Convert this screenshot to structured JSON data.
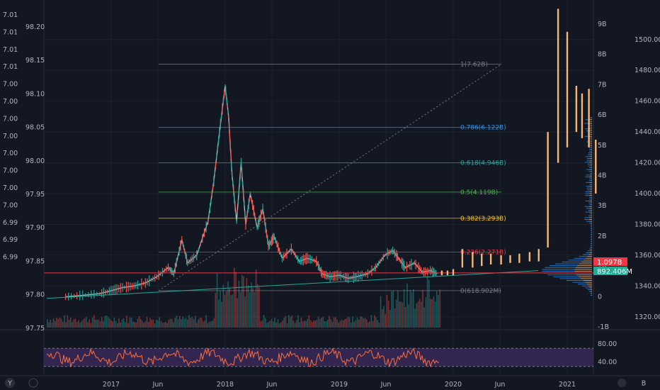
{
  "chart_data": {
    "type": "line",
    "title": "",
    "left_axis_outer_ticks": [
      "7.01",
      "7.01",
      "7.01",
      "7.01",
      "7.00",
      "7.00",
      "7.00",
      "7.00",
      "7.00",
      "7.00",
      "7.00",
      "7.00",
      "6.99",
      "6.99",
      "6.99"
    ],
    "left_axis_inner_ticks": [
      "98.20",
      "98.15",
      "98.10",
      "98.05",
      "98.00",
      "97.95",
      "97.90",
      "97.85",
      "97.80",
      "97.75"
    ],
    "volume_axis_ticks": [
      "9B",
      "8B",
      "7B",
      "6B",
      "5B",
      "4B",
      "3B",
      "2B",
      "1B",
      "0",
      "-1B"
    ],
    "price_axis_ticks": [
      "1500.00",
      "1480.00",
      "1460.00",
      "1440.00",
      "1420.00",
      "1400.00",
      "1380.00",
      "1360.00",
      "1340.00",
      "1320.00"
    ],
    "price_ylim": [
      1313,
      1522
    ],
    "rsi_ticks": [
      "80.00",
      "40.00"
    ],
    "x_tick_labels": [
      "2017",
      "Jun",
      "2018",
      "Jun",
      "2019",
      "Jun",
      "2020",
      "Jun",
      "2021"
    ],
    "fib_levels": [
      {
        "label": "1(7.62B)",
        "value": 1484
      },
      {
        "label": "0.786(6.122B)",
        "value": 1443
      },
      {
        "label": "0.618(4.946B)",
        "value": 1420
      },
      {
        "label": "0.5(4.119B)",
        "value": 1401
      },
      {
        "label": "0.382(3.293B)",
        "value": 1384
      },
      {
        "label": "0.236(2.271B)",
        "value": 1362
      },
      {
        "label": "0(618.902M)",
        "value": 1337
      }
    ],
    "price_series": [
      {
        "t": 2016.6,
        "v": 1333
      },
      {
        "t": 2016.75,
        "v": 1334
      },
      {
        "t": 2016.9,
        "v": 1335
      },
      {
        "t": 2017.0,
        "v": 1337
      },
      {
        "t": 2017.1,
        "v": 1339
      },
      {
        "t": 2017.2,
        "v": 1340
      },
      {
        "t": 2017.3,
        "v": 1342
      },
      {
        "t": 2017.4,
        "v": 1346
      },
      {
        "t": 2017.5,
        "v": 1352
      },
      {
        "t": 2017.55,
        "v": 1348
      },
      {
        "t": 2017.62,
        "v": 1370
      },
      {
        "t": 2017.67,
        "v": 1355
      },
      {
        "t": 2017.75,
        "v": 1360
      },
      {
        "t": 2017.85,
        "v": 1382
      },
      {
        "t": 2017.9,
        "v": 1408
      },
      {
        "t": 2017.95,
        "v": 1440
      },
      {
        "t": 2018.0,
        "v": 1470
      },
      {
        "t": 2018.03,
        "v": 1450
      },
      {
        "t": 2018.06,
        "v": 1412
      },
      {
        "t": 2018.1,
        "v": 1382
      },
      {
        "t": 2018.14,
        "v": 1420
      },
      {
        "t": 2018.18,
        "v": 1380
      },
      {
        "t": 2018.22,
        "v": 1400
      },
      {
        "t": 2018.28,
        "v": 1378
      },
      {
        "t": 2018.33,
        "v": 1390
      },
      {
        "t": 2018.38,
        "v": 1366
      },
      {
        "t": 2018.43,
        "v": 1372
      },
      {
        "t": 2018.5,
        "v": 1358
      },
      {
        "t": 2018.58,
        "v": 1364
      },
      {
        "t": 2018.65,
        "v": 1356
      },
      {
        "t": 2018.72,
        "v": 1358
      },
      {
        "t": 2018.8,
        "v": 1356
      },
      {
        "t": 2018.85,
        "v": 1348
      },
      {
        "t": 2018.92,
        "v": 1346
      },
      {
        "t": 2019.0,
        "v": 1347
      },
      {
        "t": 2019.08,
        "v": 1345
      },
      {
        "t": 2019.15,
        "v": 1346
      },
      {
        "t": 2019.25,
        "v": 1348
      },
      {
        "t": 2019.32,
        "v": 1352
      },
      {
        "t": 2019.4,
        "v": 1360
      },
      {
        "t": 2019.47,
        "v": 1363
      },
      {
        "t": 2019.52,
        "v": 1358
      },
      {
        "t": 2019.58,
        "v": 1352
      },
      {
        "t": 2019.66,
        "v": 1355
      },
      {
        "t": 2019.73,
        "v": 1349
      },
      {
        "t": 2019.8,
        "v": 1350
      },
      {
        "t": 2019.86,
        "v": 1348
      }
    ],
    "projection_bars": [
      {
        "t": 2019.9,
        "low": 1347,
        "high": 1350
      },
      {
        "t": 2019.95,
        "low": 1347,
        "high": 1350
      },
      {
        "t": 2020.0,
        "low": 1347,
        "high": 1351
      },
      {
        "t": 2020.08,
        "low": 1352,
        "high": 1364
      },
      {
        "t": 2020.17,
        "low": 1352,
        "high": 1362
      },
      {
        "t": 2020.25,
        "low": 1353,
        "high": 1361
      },
      {
        "t": 2020.33,
        "low": 1354,
        "high": 1361
      },
      {
        "t": 2020.42,
        "low": 1354,
        "high": 1360
      },
      {
        "t": 2020.5,
        "low": 1355,
        "high": 1360
      },
      {
        "t": 2020.58,
        "low": 1355,
        "high": 1361
      },
      {
        "t": 2020.67,
        "low": 1356,
        "high": 1362
      },
      {
        "t": 2020.75,
        "low": 1356,
        "high": 1364
      },
      {
        "t": 2020.83,
        "low": 1365,
        "high": 1440
      },
      {
        "t": 2020.92,
        "low": 1420,
        "high": 1520
      },
      {
        "t": 2021.0,
        "low": 1430,
        "high": 1505
      },
      {
        "t": 2021.08,
        "low": 1440,
        "high": 1470
      },
      {
        "t": 2021.13,
        "low": 1436,
        "high": 1465
      },
      {
        "t": 2021.19,
        "low": 1430,
        "high": 1468
      },
      {
        "t": 2021.25,
        "low": 1400,
        "high": 1435
      }
    ],
    "latest_tags": [
      {
        "label": "1.097B",
        "color": "#f23645"
      },
      {
        "label": "892.406M",
        "color": "#22ab94"
      }
    ],
    "bottom_corner_labels": [
      "Y",
      "B"
    ],
    "colors": {
      "up": "#26a69a",
      "down": "#ef5350",
      "projection": "#f5b77a",
      "rsi": "#ff6d3a",
      "rsi_band": "#3b2a5c",
      "volume_profile": "#1e88e5"
    }
  }
}
